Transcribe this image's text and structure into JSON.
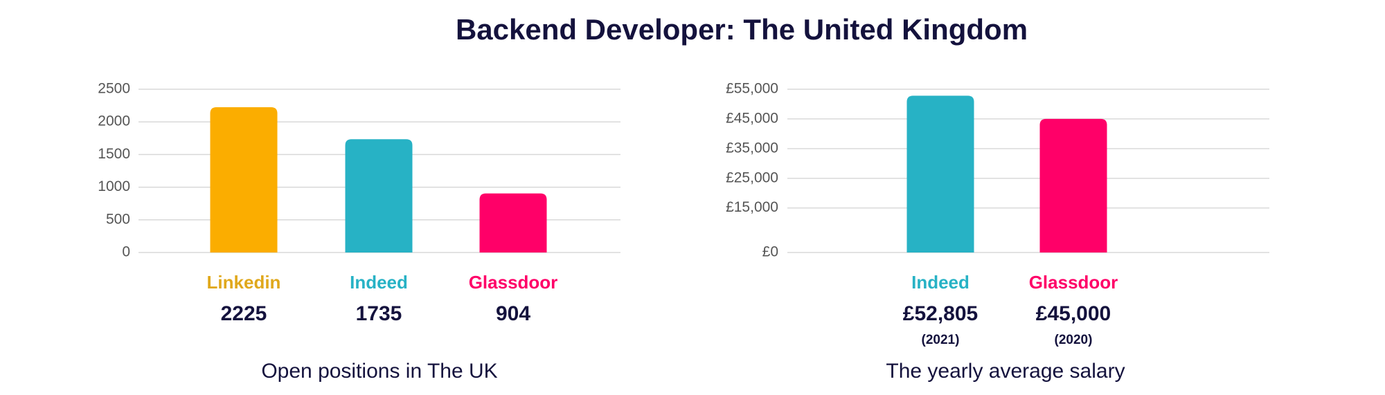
{
  "title": "Backend Developer: The United Kingdom",
  "chart_data": [
    {
      "type": "bar",
      "subtitle": "Open positions in The UK",
      "categories": [
        "Linkedin",
        "Indeed",
        "Glassdoor"
      ],
      "values": [
        2225,
        1735,
        904
      ],
      "colors": [
        "#fbad00",
        "#27b2c5",
        "#ff0068"
      ],
      "label_colors": [
        "#e0a81c",
        "#27b2c5",
        "#ff0068"
      ],
      "ylim": [
        0,
        2500
      ],
      "yticks": [
        0,
        500,
        1000,
        1500,
        2000,
        2500
      ],
      "grid": true
    },
    {
      "type": "bar",
      "subtitle": "The yearly average salary",
      "categories": [
        "Indeed",
        "Glassdoor"
      ],
      "values": [
        52805,
        45000
      ],
      "value_labels": [
        "£52,805",
        "£45,000"
      ],
      "annotations": [
        "(2021)",
        "(2020)"
      ],
      "colors": [
        "#27b2c5",
        "#ff0068"
      ],
      "label_colors": [
        "#27b2c5",
        "#ff0068"
      ],
      "ylim": [
        0,
        55000
      ],
      "yticks": [
        {
          "value": 0,
          "label": "£0"
        },
        {
          "value": 15000,
          "label": "£15,000"
        },
        {
          "value": 25000,
          "label": "£25,000"
        },
        {
          "value": 35000,
          "label": "£35,000"
        },
        {
          "value": 45000,
          "label": "£45,000"
        },
        {
          "value": 55000,
          "label": "£55,000"
        }
      ],
      "grid": true
    }
  ]
}
